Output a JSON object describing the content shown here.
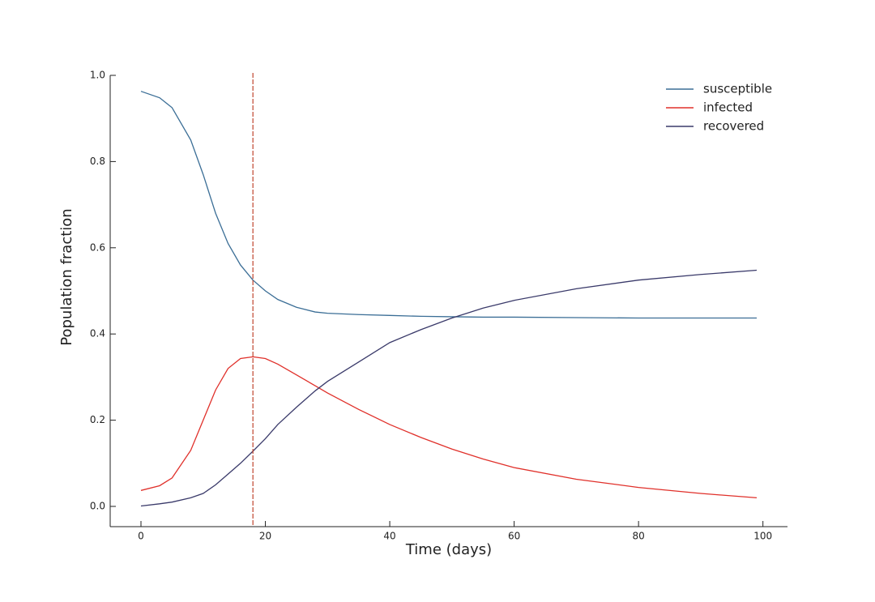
{
  "chart_data": {
    "type": "line",
    "xlabel": "Time (days)",
    "ylabel": "Population fraction",
    "x": [
      0,
      3,
      5,
      8,
      10,
      12,
      14,
      16,
      18,
      20,
      22,
      25,
      28,
      30,
      35,
      40,
      45,
      50,
      55,
      60,
      70,
      80,
      90,
      99
    ],
    "series": [
      {
        "name": "susceptible",
        "color": "#3b6e96",
        "values": [
          0.963,
          0.948,
          0.925,
          0.85,
          0.77,
          0.68,
          0.61,
          0.56,
          0.525,
          0.5,
          0.48,
          0.462,
          0.451,
          0.448,
          0.445,
          0.443,
          0.441,
          0.44,
          0.439,
          0.439,
          0.438,
          0.437,
          0.437,
          0.437
        ]
      },
      {
        "name": "infected",
        "color": "#e0302a",
        "values": [
          0.037,
          0.048,
          0.066,
          0.13,
          0.2,
          0.27,
          0.32,
          0.343,
          0.347,
          0.343,
          0.33,
          0.305,
          0.28,
          0.263,
          0.225,
          0.19,
          0.16,
          0.133,
          0.11,
          0.09,
          0.063,
          0.044,
          0.03,
          0.02
        ]
      },
      {
        "name": "recovered",
        "color": "#3a3a6a",
        "values": [
          0.001,
          0.006,
          0.01,
          0.02,
          0.03,
          0.05,
          0.075,
          0.1,
          0.128,
          0.157,
          0.19,
          0.23,
          0.268,
          0.29,
          0.335,
          0.38,
          0.41,
          0.437,
          0.46,
          0.478,
          0.505,
          0.525,
          0.538,
          0.548
        ]
      }
    ],
    "vline": {
      "x": 18,
      "color": "#c0452e",
      "style": "dashed"
    },
    "xlim": [
      -4.95,
      103.95
    ],
    "xticks": [
      0,
      20,
      40,
      60,
      80,
      100
    ],
    "ylim": [
      -0.047,
      1.0
    ],
    "yticks": [
      {
        "value": 0,
        "label": "0.0"
      },
      0.2,
      0.4,
      0.6,
      0.8,
      {
        "value": 1,
        "label": "1.0"
      }
    ],
    "grid": false,
    "legend": "upper right"
  }
}
